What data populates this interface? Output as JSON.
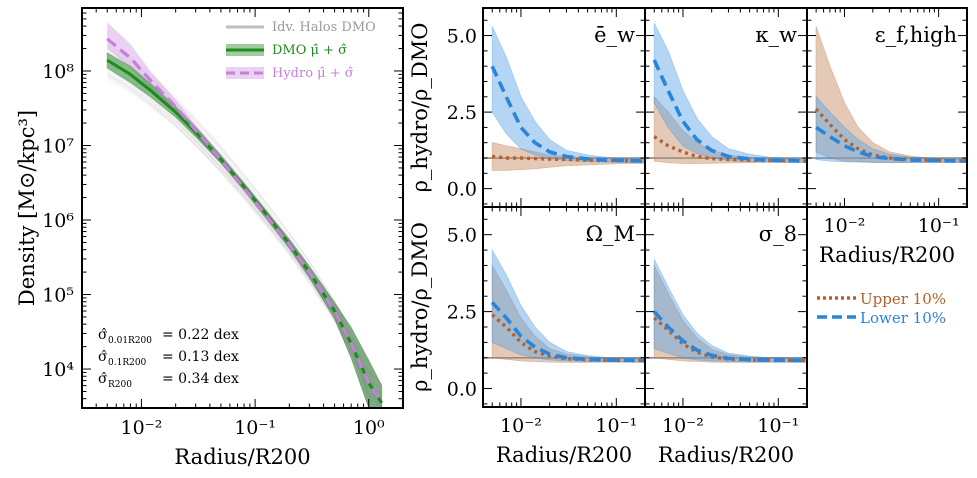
{
  "chart_data": [
    {
      "id": "density",
      "type": "line",
      "xscale": "log",
      "yscale": "log",
      "xlim": [
        0.003,
        2.0
      ],
      "ylim": [
        3000,
        700000000
      ],
      "xlabel": "Radius/R200",
      "ylabel": "Density [M⊙/kpc³]",
      "xtick_labels": [
        "10⁻²",
        "10⁻¹",
        "10⁰"
      ],
      "ytick_labels": [
        "10⁴",
        "10⁵",
        "10⁶",
        "10⁷",
        "10⁸"
      ],
      "legend": {
        "placement": "top-right",
        "entries": [
          {
            "label": "Idv. Halos DMO",
            "color": "#bdbdbd"
          },
          {
            "label": "DMO μ̂ + σ̂",
            "color": "#1f8a1f"
          },
          {
            "label": "Hydro μ̂ + σ̂",
            "color": "#c77fdc"
          }
        ]
      },
      "annotations": [
        {
          "label": "σ̂",
          "sub": "0.01R200",
          "value": "= 0.22 dex"
        },
        {
          "label": "σ̂",
          "sub": "0.1R200",
          "value": "= 0.13 dex"
        },
        {
          "label": "σ̂",
          "sub": "R200",
          "value": "= 0.34 dex"
        }
      ],
      "x": [
        0.005,
        0.008,
        0.012,
        0.02,
        0.03,
        0.05,
        0.08,
        0.12,
        0.2,
        0.3,
        0.5,
        0.7,
        1.0,
        1.3
      ],
      "series": [
        {
          "name": "DMO",
          "color": "#1f8a1f",
          "style": "solid",
          "values": [
            140000000,
            90000000,
            55000000,
            28000000,
            15000000,
            6500000,
            2800000,
            1300000,
            480000,
            200000,
            60000,
            22000,
            6500,
            3500
          ],
          "lower": [
            110000000,
            70000000,
            45000000,
            24000000,
            13000000,
            5800000,
            2500000,
            1150000,
            420000,
            170000,
            48000,
            14000,
            3000,
            3000
          ],
          "upper": [
            175000000,
            115000000,
            68000000,
            33000000,
            17500000,
            7300000,
            3100000,
            1450000,
            550000,
            240000,
            78000,
            36000,
            13000,
            6000
          ]
        },
        {
          "name": "Hydro",
          "color": "#c77fdc",
          "style": "dashed",
          "values": [
            270000000,
            150000000,
            75000000,
            33000000,
            16000000,
            6400000,
            2700000,
            1250000,
            470000,
            200000,
            60000,
            22000,
            6500,
            3500
          ],
          "lower": [
            200000000,
            110000000,
            58000000,
            27000000,
            13500000,
            5600000,
            2400000,
            1100000,
            410000,
            165000,
            45000,
            14000,
            3000,
            3000
          ],
          "upper": [
            450000000,
            230000000,
            100000000,
            41000000,
            19000000,
            7400000,
            3050000,
            1420000,
            540000,
            240000,
            80000,
            36000,
            13000,
            6000
          ]
        }
      ],
      "background_halos": "many faint gray individual DMO halo profiles"
    },
    {
      "id": "ratio_panels",
      "type": "line",
      "xscale": "log",
      "xlim": [
        0.004,
        0.2
      ],
      "ylim": [
        -0.6,
        5.9
      ],
      "ylabel": "ρ_hydro/ρ_DMO",
      "xlabel": "Radius/R200",
      "ytick_labels": [
        "0.0",
        "2.5",
        "5.0"
      ],
      "xtick_labels": [
        "10⁻²",
        "10⁻¹"
      ],
      "legend": {
        "placement": "right",
        "entries": [
          {
            "label": "Upper 10%",
            "color": "#b5602b",
            "style": "dotted"
          },
          {
            "label": "Lower 10%",
            "color": "#2a84d8",
            "style": "dashed"
          }
        ]
      },
      "x": [
        0.005,
        0.007,
        0.01,
        0.014,
        0.02,
        0.03,
        0.05,
        0.08,
        0.12,
        0.2
      ],
      "reference_line": 1.0,
      "panels": [
        {
          "label": "ē_w",
          "upper": {
            "values": [
              1.05,
              1.0,
              1.0,
              0.98,
              0.96,
              0.95,
              0.93,
              0.92,
              0.91,
              0.9
            ],
            "lo": [
              0.6,
              0.6,
              0.62,
              0.65,
              0.7,
              0.75,
              0.78,
              0.8,
              0.82,
              0.82
            ],
            "hi": [
              1.5,
              1.4,
              1.3,
              1.2,
              1.1,
              1.05,
              1.0,
              0.98,
              0.97,
              0.96
            ]
          },
          "lower": {
            "values": [
              4.0,
              3.0,
              2.0,
              1.5,
              1.2,
              1.05,
              0.97,
              0.93,
              0.92,
              0.9
            ],
            "lo": [
              2.5,
              1.8,
              1.3,
              1.1,
              0.98,
              0.92,
              0.88,
              0.87,
              0.86,
              0.86
            ],
            "hi": [
              5.3,
              4.3,
              3.0,
              2.2,
              1.6,
              1.25,
              1.1,
              1.02,
              0.98,
              0.96
            ]
          }
        },
        {
          "label": "κ_w",
          "upper": {
            "values": [
              1.7,
              1.4,
              1.2,
              1.05,
              0.98,
              0.95,
              0.93,
              0.92,
              0.91,
              0.9
            ],
            "lo": [
              0.9,
              0.85,
              0.82,
              0.82,
              0.83,
              0.84,
              0.85,
              0.86,
              0.86,
              0.86
            ],
            "hi": [
              3.0,
              2.5,
              1.9,
              1.5,
              1.25,
              1.1,
              1.02,
              0.98,
              0.96,
              0.95
            ]
          },
          "lower": {
            "values": [
              4.2,
              3.2,
              2.2,
              1.6,
              1.25,
              1.05,
              0.97,
              0.93,
              0.92,
              0.9
            ],
            "lo": [
              2.8,
              2.0,
              1.4,
              1.15,
              1.0,
              0.93,
              0.88,
              0.87,
              0.86,
              0.86
            ],
            "hi": [
              5.4,
              4.5,
              3.2,
              2.3,
              1.7,
              1.3,
              1.12,
              1.03,
              0.99,
              0.96
            ]
          }
        },
        {
          "label": "ε_f,high",
          "upper": {
            "values": [
              2.6,
              2.1,
              1.6,
              1.3,
              1.1,
              1.0,
              0.95,
              0.93,
              0.91,
              0.9
            ],
            "lo": [
              1.2,
              1.0,
              0.9,
              0.88,
              0.86,
              0.85,
              0.85,
              0.86,
              0.86,
              0.86
            ],
            "hi": [
              5.3,
              4.0,
              2.8,
              2.0,
              1.5,
              1.2,
              1.06,
              1.0,
              0.97,
              0.96
            ]
          },
          "lower": {
            "values": [
              2.0,
              1.7,
              1.4,
              1.2,
              1.05,
              0.98,
              0.94,
              0.92,
              0.91,
              0.9
            ],
            "lo": [
              0.95,
              0.9,
              0.88,
              0.87,
              0.86,
              0.86,
              0.86,
              0.86,
              0.86,
              0.86
            ],
            "hi": [
              3.0,
              2.5,
              2.0,
              1.6,
              1.3,
              1.12,
              1.03,
              0.99,
              0.97,
              0.96
            ]
          }
        },
        {
          "label": "Ω_M",
          "upper": {
            "values": [
              2.4,
              2.0,
              1.5,
              1.2,
              1.05,
              0.97,
              0.93,
              0.92,
              0.91,
              0.9
            ],
            "lo": [
              1.0,
              0.95,
              0.9,
              0.88,
              0.86,
              0.85,
              0.85,
              0.86,
              0.86,
              0.86
            ],
            "hi": [
              4.0,
              3.2,
              2.3,
              1.7,
              1.3,
              1.12,
              1.03,
              0.99,
              0.97,
              0.96
            ]
          },
          "lower": {
            "values": [
              2.8,
              2.3,
              1.7,
              1.35,
              1.12,
              1.0,
              0.95,
              0.93,
              0.92,
              0.9
            ],
            "lo": [
              1.5,
              1.3,
              1.1,
              1.0,
              0.93,
              0.9,
              0.88,
              0.87,
              0.86,
              0.86
            ],
            "hi": [
              4.5,
              3.7,
              2.7,
              2.0,
              1.5,
              1.2,
              1.07,
              1.0,
              0.98,
              0.96
            ]
          }
        },
        {
          "label": "σ_8",
          "upper": {
            "values": [
              2.3,
              1.9,
              1.45,
              1.18,
              1.03,
              0.96,
              0.93,
              0.92,
              0.91,
              0.9
            ],
            "lo": [
              1.0,
              0.95,
              0.9,
              0.88,
              0.86,
              0.85,
              0.85,
              0.86,
              0.86,
              0.86
            ],
            "hi": [
              4.0,
              3.1,
              2.2,
              1.65,
              1.28,
              1.1,
              1.02,
              0.99,
              0.97,
              0.96
            ]
          },
          "lower": {
            "values": [
              2.5,
              2.0,
              1.55,
              1.25,
              1.08,
              0.98,
              0.94,
              0.92,
              0.91,
              0.9
            ],
            "lo": [
              1.3,
              1.15,
              1.0,
              0.93,
              0.9,
              0.88,
              0.87,
              0.86,
              0.86,
              0.86
            ],
            "hi": [
              4.2,
              3.3,
              2.4,
              1.8,
              1.4,
              1.15,
              1.05,
              1.0,
              0.98,
              0.96
            ]
          }
        }
      ]
    }
  ]
}
